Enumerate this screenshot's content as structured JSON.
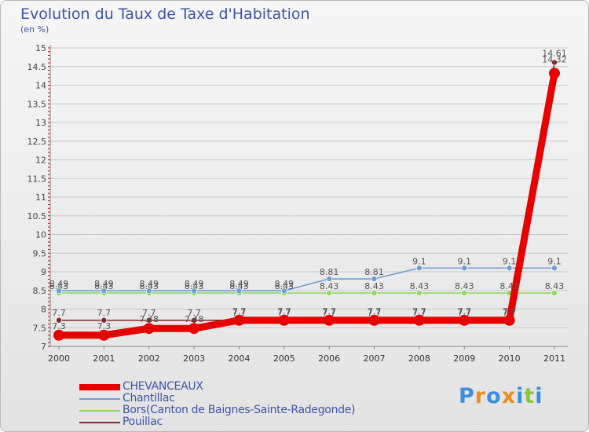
{
  "header": {
    "title": "Evolution du Taux de Taxe d'Habitation",
    "subtitle": "(en %)"
  },
  "colors": {
    "text": "#3d55a8",
    "grid": "#c8c8c8",
    "axis": "#888888",
    "ticks": "#cc0000"
  },
  "chart_data": {
    "type": "line",
    "title": "Evolution du Taux de Taxe d'Habitation",
    "subtitle": "(en %)",
    "xlabel": "",
    "ylabel": "",
    "x": [
      "2000",
      "2001",
      "2002",
      "2003",
      "2004",
      "2005",
      "2006",
      "2007",
      "2008",
      "2009",
      "2010",
      "2011"
    ],
    "ylim": [
      7,
      15
    ],
    "yticks": [
      "7",
      "7.5",
      "8",
      "8.5",
      "9",
      "9.5",
      "10",
      "10.5",
      "11",
      "11.5",
      "12",
      "12.5",
      "13",
      "13.5",
      "14",
      "14.5",
      "15"
    ],
    "grid": "horizontal",
    "legend_position": "bottom",
    "series": [
      {
        "name": "CHEVANCEAUX",
        "color": "#e60000",
        "width": 9,
        "marker": 7,
        "values": [
          7.3,
          7.3,
          7.48,
          7.48,
          7.7,
          7.7,
          7.7,
          7.7,
          7.7,
          7.7,
          7.7,
          14.32
        ],
        "labels": [
          "7.3",
          "7.3",
          "7.48",
          "7.48",
          "7.7",
          "7.7",
          "7.7",
          "7.7",
          "7.7",
          "7.7",
          "7.7",
          "14.32"
        ]
      },
      {
        "name": "Chantillac",
        "color": "#6f9fd0",
        "width": 1.6,
        "marker": 3.5,
        "values": [
          8.49,
          8.49,
          8.49,
          8.49,
          8.49,
          8.49,
          8.81,
          8.81,
          9.1,
          9.1,
          9.1,
          9.1
        ],
        "labels": [
          "8.49",
          "8.49",
          "8.49",
          "8.49",
          "8.49",
          "8.49",
          "8.81",
          "8.81",
          "9.1",
          "9.1",
          "9.1",
          "9.1"
        ]
      },
      {
        "name": "Bors(Canton de Baignes-Sainte-Radegonde)",
        "color": "#8fd866",
        "width": 1.6,
        "marker": 3.5,
        "values": [
          8.43,
          8.43,
          8.43,
          8.43,
          8.43,
          8.43,
          8.43,
          8.43,
          8.43,
          8.43,
          8.43,
          8.43
        ],
        "labels": [
          "8.43",
          "8.43",
          "8.43",
          "8.43",
          "8.43",
          "8.43",
          "8.43",
          "8.43",
          "8.43",
          "8.43",
          "8.43",
          "8.43"
        ]
      },
      {
        "name": "Pouillac",
        "color": "#7b2b2b",
        "width": 1.6,
        "marker": 3.5,
        "values": [
          7.7,
          7.7,
          7.7,
          7.7,
          7.7,
          7.7,
          7.7,
          7.7,
          7.7,
          7.7,
          7.7,
          14.61
        ],
        "labels": [
          "7.7",
          "7.7",
          "7.7",
          "7.7",
          "7.7",
          "7.7",
          "7.7",
          "7.7",
          "7.7",
          "7.7",
          "7.7",
          "14.61"
        ]
      }
    ]
  },
  "logo": {
    "letters": [
      "P",
      "r",
      "o",
      "x",
      "i",
      "t",
      "i"
    ],
    "colors": [
      "#3a8fd8",
      "#f28c1a",
      "#3a8fd8",
      "#f28c1a",
      "#3a8fd8",
      "#8cc63f",
      "#3a8fd8"
    ]
  }
}
